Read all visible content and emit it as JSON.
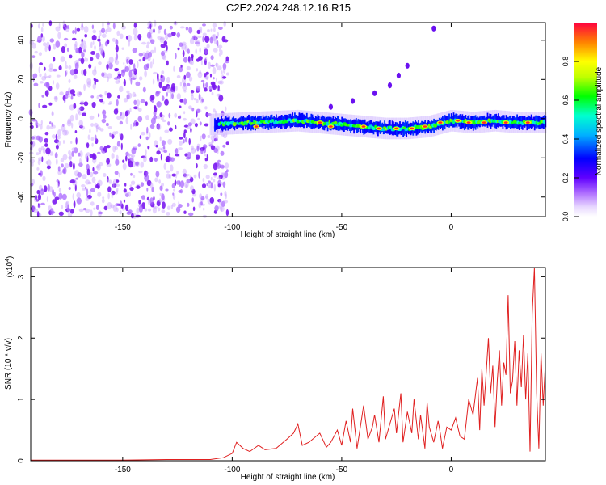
{
  "figure": {
    "title": "C2E2.2024.248.12.16.R15"
  },
  "colorbar": {
    "label": "Normalized spectral amplitude",
    "ticks": [
      "0.0",
      "0.2",
      "0.4",
      "0.6",
      "0.8"
    ]
  },
  "chart_data": [
    {
      "type": "heatmap",
      "xlabel": "Height of straight line (km)",
      "ylabel": "Frequency (Hz)",
      "xlim": [
        -192,
        43
      ],
      "ylim": [
        -50,
        49
      ],
      "xticks": [
        -150,
        -100,
        -50,
        0
      ],
      "yticks": [
        -40,
        -20,
        0,
        20,
        40
      ],
      "xtick_labels": [
        "-150",
        "-100",
        "-50",
        "0"
      ],
      "ytick_labels": [
        "-40",
        "-20",
        "0",
        "20",
        "40"
      ],
      "colorscale": "rainbow (purple = 0, red = 1)",
      "zlim": [
        0,
        1
      ],
      "noise_region": {
        "x": [
          -192,
          -102
        ],
        "y": [
          -50,
          49
        ],
        "level": 0.1
      },
      "signal_band": {
        "x": [
          -110,
          43
        ],
        "center_freq": [
          [
            -110,
            -3
          ],
          [
            -90,
            -2
          ],
          [
            -70,
            -1
          ],
          [
            -50,
            -3
          ],
          [
            -40,
            -4
          ],
          [
            -30,
            -5
          ],
          [
            -20,
            -5
          ],
          [
            -10,
            -4
          ],
          [
            0,
            -1
          ],
          [
            10,
            -2
          ],
          [
            20,
            -1
          ],
          [
            30,
            -2
          ],
          [
            43,
            -2
          ]
        ],
        "hot_spots": [
          [
            -89,
            -4
          ],
          [
            -60,
            -2
          ],
          [
            -55,
            -4
          ],
          [
            -40,
            -4
          ],
          [
            -33,
            -5
          ],
          [
            -25,
            -5
          ],
          [
            -18,
            -5
          ],
          [
            -12,
            -4
          ],
          [
            -5,
            -2
          ],
          [
            3,
            -1
          ],
          [
            8,
            -2
          ],
          [
            15,
            -2
          ],
          [
            25,
            -2
          ],
          [
            35,
            -2
          ]
        ]
      },
      "secondary_feature": {
        "x": [
          -55,
          -8
        ],
        "points": [
          [
            -55,
            6
          ],
          [
            -45,
            9
          ],
          [
            -35,
            13
          ],
          [
            -28,
            17
          ],
          [
            -24,
            22
          ],
          [
            -20,
            27
          ],
          [
            -8,
            46
          ]
        ]
      }
    },
    {
      "type": "line",
      "xlabel": "Height of straight line (km)",
      "ylabel": "SNR (10 * v/v)",
      "y_multiplier": "(x10^4)",
      "xlim": [
        -192,
        43
      ],
      "ylim": [
        0,
        3.15
      ],
      "xticks": [
        -150,
        -100,
        -50,
        0
      ],
      "yticks": [
        0,
        1,
        2,
        3
      ],
      "xtick_labels": [
        "-150",
        "-100",
        "-50",
        "0"
      ],
      "ytick_labels": [
        "0",
        "1",
        "2",
        "3"
      ],
      "color": "#e02020",
      "series": [
        {
          "x": [
            -192,
            -170,
            -150,
            -130,
            -110,
            -104,
            -100,
            -98,
            -95,
            -92,
            -88,
            -85,
            -80,
            -75,
            -72,
            -70,
            -68,
            -65,
            -60,
            -57,
            -55,
            -52,
            -50,
            -48,
            -46,
            -45,
            -43,
            -40,
            -38,
            -36,
            -35,
            -33,
            -31,
            -30,
            -28,
            -26,
            -25,
            -23,
            -22,
            -20,
            -18,
            -17,
            -15,
            -14,
            -12,
            -11,
            -10,
            -8,
            -6,
            -5,
            -4,
            -2,
            0,
            2,
            4,
            6,
            8,
            10,
            12,
            13,
            14,
            15,
            17,
            18,
            19,
            20,
            21,
            22,
            23,
            24,
            25,
            26,
            27,
            28,
            29,
            30,
            31,
            32,
            33,
            34,
            35,
            36,
            37,
            38,
            39,
            40,
            41,
            42,
            43
          ],
          "y": [
            0.01,
            0.01,
            0.01,
            0.02,
            0.02,
            0.05,
            0.12,
            0.3,
            0.2,
            0.15,
            0.25,
            0.18,
            0.2,
            0.35,
            0.45,
            0.6,
            0.25,
            0.3,
            0.45,
            0.22,
            0.3,
            0.5,
            0.25,
            0.65,
            0.3,
            0.85,
            0.2,
            0.9,
            0.35,
            0.55,
            0.75,
            0.3,
            1.05,
            0.35,
            0.6,
            0.85,
            0.45,
            1.1,
            0.3,
            0.8,
            0.45,
            1.0,
            0.35,
            0.75,
            0.2,
            0.95,
            0.55,
            0.3,
            0.65,
            0.45,
            0.2,
            0.55,
            0.5,
            0.7,
            0.4,
            0.35,
            1.0,
            0.75,
            1.35,
            0.5,
            1.5,
            0.9,
            2.0,
            1.1,
            1.55,
            0.55,
            1.3,
            1.8,
            0.9,
            1.6,
            1.4,
            2.7,
            1.1,
            1.3,
            1.95,
            0.9,
            1.8,
            1.2,
            2.05,
            1.0,
            1.75,
            0.15,
            2.4,
            3.15,
            1.1,
            0.2,
            1.75,
            0.9,
            1.6
          ]
        }
      ]
    }
  ]
}
